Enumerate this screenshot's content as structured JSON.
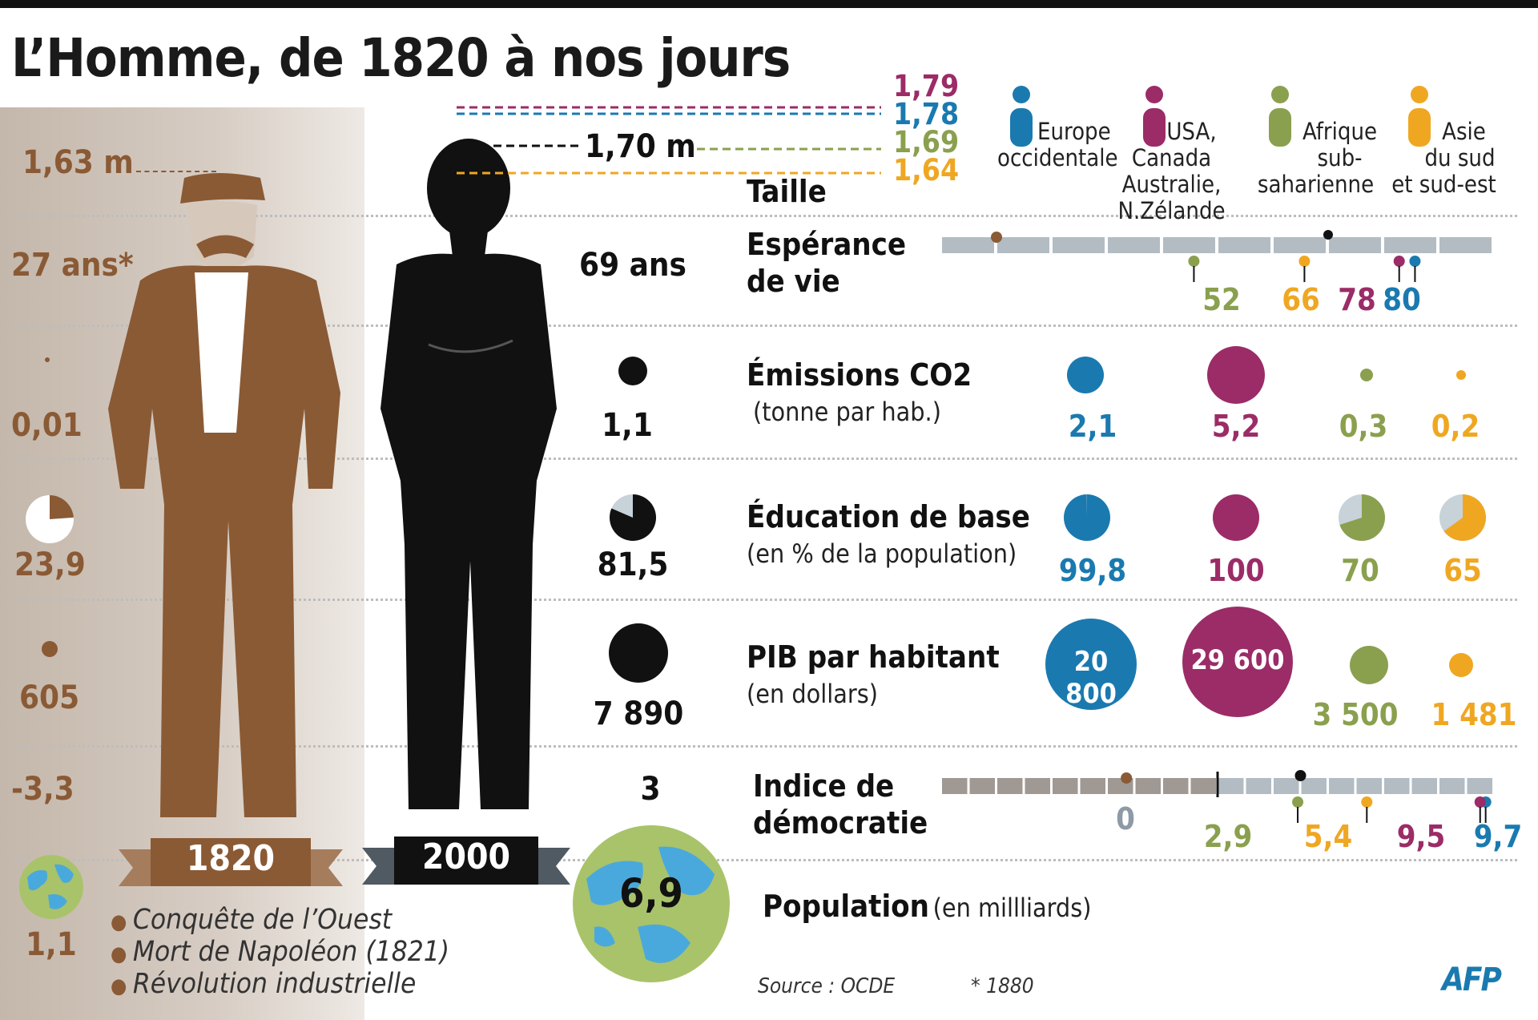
{
  "title": "L’Homme, de 1820 à nos jours",
  "years": {
    "y1820": "1820",
    "y2000": "2000"
  },
  "height_levels": [
    "1,79",
    "1,78",
    "1,69",
    "1,64"
  ],
  "legend": [
    {
      "key": "eu",
      "label_lines": [
        "Europe",
        "occidentale"
      ],
      "color": "#1a7ab0"
    },
    {
      "key": "us",
      "label_lines": [
        "USA,",
        "Canada",
        "Australie,",
        "N.Zélande"
      ],
      "color": "#9b2c67"
    },
    {
      "key": "af",
      "label_lines": [
        "Afrique",
        "sub-",
        "saharienne"
      ],
      "color": "#8aa04e"
    },
    {
      "key": "as",
      "label_lines": [
        "Asie",
        "du sud",
        "et sud-est"
      ],
      "color": "#efa722"
    }
  ],
  "colors": {
    "brown": "#8a5a35",
    "black": "#111111",
    "grey_bar": "#b3bcc3",
    "zero_label": "#8e9aa5"
  },
  "rows": {
    "taille": {
      "title": "Taille",
      "v1820": "1,63 m",
      "v2000": "1,70 m"
    },
    "esperance": {
      "title_lines": [
        "Espérance",
        "de vie"
      ],
      "v1820": "27 ans*",
      "v2000": "69 ans",
      "values": {
        "eu": "80",
        "us": "78",
        "af": "52",
        "as": "66"
      }
    },
    "co2": {
      "title": "Émissions CO2",
      "subtitle": "(tonne par hab.)",
      "v1820": "0,01",
      "v2000": "1,1",
      "values": {
        "eu": "2,1",
        "us": "5,2",
        "af": "0,3",
        "as": "0,2"
      }
    },
    "education": {
      "title": "Éducation de base",
      "subtitle": "(en % de la population)",
      "v1820": "23,9",
      "v2000": "81,5",
      "values": {
        "eu": "99,8",
        "us": "100",
        "af": "70",
        "as": "65"
      }
    },
    "pib": {
      "title": "PIB par habitant",
      "subtitle": "(en dollars)",
      "v1820": "605",
      "v2000": "7 890",
      "values": {
        "eu": "20 800",
        "us": "29 600",
        "af": "3 500",
        "as": "1 481"
      }
    },
    "democratie": {
      "title_lines": [
        "Indice  de",
        "démocratie"
      ],
      "v1820": "-3,3",
      "v2000": "3",
      "zero": "0",
      "values": {
        "eu": "9,7",
        "us": "9,5",
        "af": "2,9",
        "as": "5,4"
      }
    },
    "population": {
      "title": "Population",
      "subtitle": "(en millliards)",
      "v1820": "1,1",
      "v2000": "6,9"
    }
  },
  "events_1820": [
    "Conquête de l’Ouest",
    "Mort de Napoléon (1821)",
    "Révolution industrielle"
  ],
  "source": "Source : OCDE",
  "footnote": "* 1880",
  "logo": "AFP",
  "chart_data": [
    {
      "type": "scatter",
      "title": "Taille",
      "unit": "m",
      "series": [
        {
          "name": "1820",
          "values": [
            1.63
          ]
        },
        {
          "name": "2000",
          "values": [
            1.7
          ]
        },
        {
          "name": "Europe occidentale",
          "values": [
            1.78
          ]
        },
        {
          "name": "USA, Canada Australie, N.Zélande",
          "values": [
            1.79
          ]
        },
        {
          "name": "Afrique sub-saharienne",
          "values": [
            1.69
          ]
        },
        {
          "name": "Asie du sud et sud-est",
          "values": [
            1.64
          ]
        }
      ]
    },
    {
      "type": "scatter",
      "title": "Espérance de vie",
      "unit": "ans",
      "series": [
        {
          "name": "1820",
          "values": [
            27
          ]
        },
        {
          "name": "2000",
          "values": [
            69
          ]
        },
        {
          "name": "Europe occidentale",
          "values": [
            80
          ]
        },
        {
          "name": "USA, Canada Australie, N.Zélande",
          "values": [
            78
          ]
        },
        {
          "name": "Afrique sub-saharienne",
          "values": [
            52
          ]
        },
        {
          "name": "Asie du sud et sud-est",
          "values": [
            66
          ]
        }
      ]
    },
    {
      "type": "bubble",
      "title": "Émissions CO2",
      "unit": "tonne par hab.",
      "categories": [
        "1820",
        "2000",
        "Europe occidentale",
        "USA, Canada Australie, N.Zélande",
        "Afrique sub-saharienne",
        "Asie du sud et sud-est"
      ],
      "values": [
        0.01,
        1.1,
        2.1,
        5.2,
        0.3,
        0.2
      ]
    },
    {
      "type": "pie",
      "title": "Éducation de base",
      "unit": "% de la population",
      "categories": [
        "1820",
        "2000",
        "Europe occidentale",
        "USA, Canada Australie, N.Zélande",
        "Afrique sub-saharienne",
        "Asie du sud et sud-est"
      ],
      "values": [
        23.9,
        81.5,
        99.8,
        100,
        70,
        65
      ]
    },
    {
      "type": "bubble",
      "title": "PIB par habitant",
      "unit": "dollars",
      "categories": [
        "1820",
        "2000",
        "Europe occidentale",
        "USA, Canada Australie, N.Zélande",
        "Afrique sub-saharienne",
        "Asie du sud et sud-est"
      ],
      "values": [
        605,
        7890,
        20800,
        29600,
        3500,
        1481
      ]
    },
    {
      "type": "scatter",
      "title": "Indice de démocratie",
      "series": [
        {
          "name": "1820",
          "values": [
            -3.3
          ]
        },
        {
          "name": "2000",
          "values": [
            3
          ]
        },
        {
          "name": "Europe occidentale",
          "values": [
            9.7
          ]
        },
        {
          "name": "USA, Canada Australie, N.Zélande",
          "values": [
            9.5
          ]
        },
        {
          "name": "Afrique sub-saharienne",
          "values": [
            2.9
          ]
        },
        {
          "name": "Asie du sud et sud-est",
          "values": [
            5.4
          ]
        }
      ]
    },
    {
      "type": "bubble",
      "title": "Population",
      "unit": "milliards",
      "categories": [
        "1820",
        "2000"
      ],
      "values": [
        1.1,
        6.9
      ]
    }
  ]
}
